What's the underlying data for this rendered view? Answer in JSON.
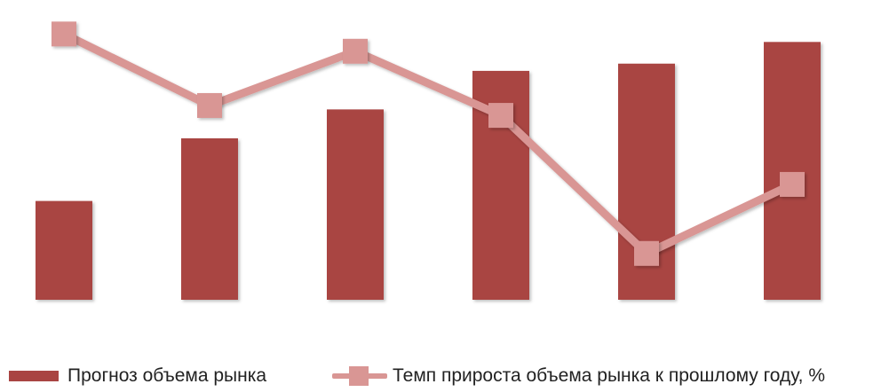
{
  "colors": {
    "bar": "#a94442",
    "line": "#d99694",
    "marker": "#d99694"
  },
  "chart_data": {
    "type": "bar",
    "categories": [
      "",
      "",
      "",
      "",
      "",
      ""
    ],
    "series": [
      {
        "name": "Прогноз объема рынка",
        "kind": "bar",
        "values": [
          0.41,
          0.67,
          0.79,
          0.95,
          0.98,
          1.07
        ]
      },
      {
        "name": "Темп прироста объема рынка к прошлому году, %",
        "kind": "line",
        "marker": "square",
        "values": [
          0.97,
          0.68,
          0.9,
          0.64,
          0.08,
          0.36
        ]
      }
    ],
    "ylim_bar": [
      0,
      1.2
    ],
    "ylim_line": [
      0,
      1
    ],
    "grid": false,
    "legend": "bottom"
  }
}
